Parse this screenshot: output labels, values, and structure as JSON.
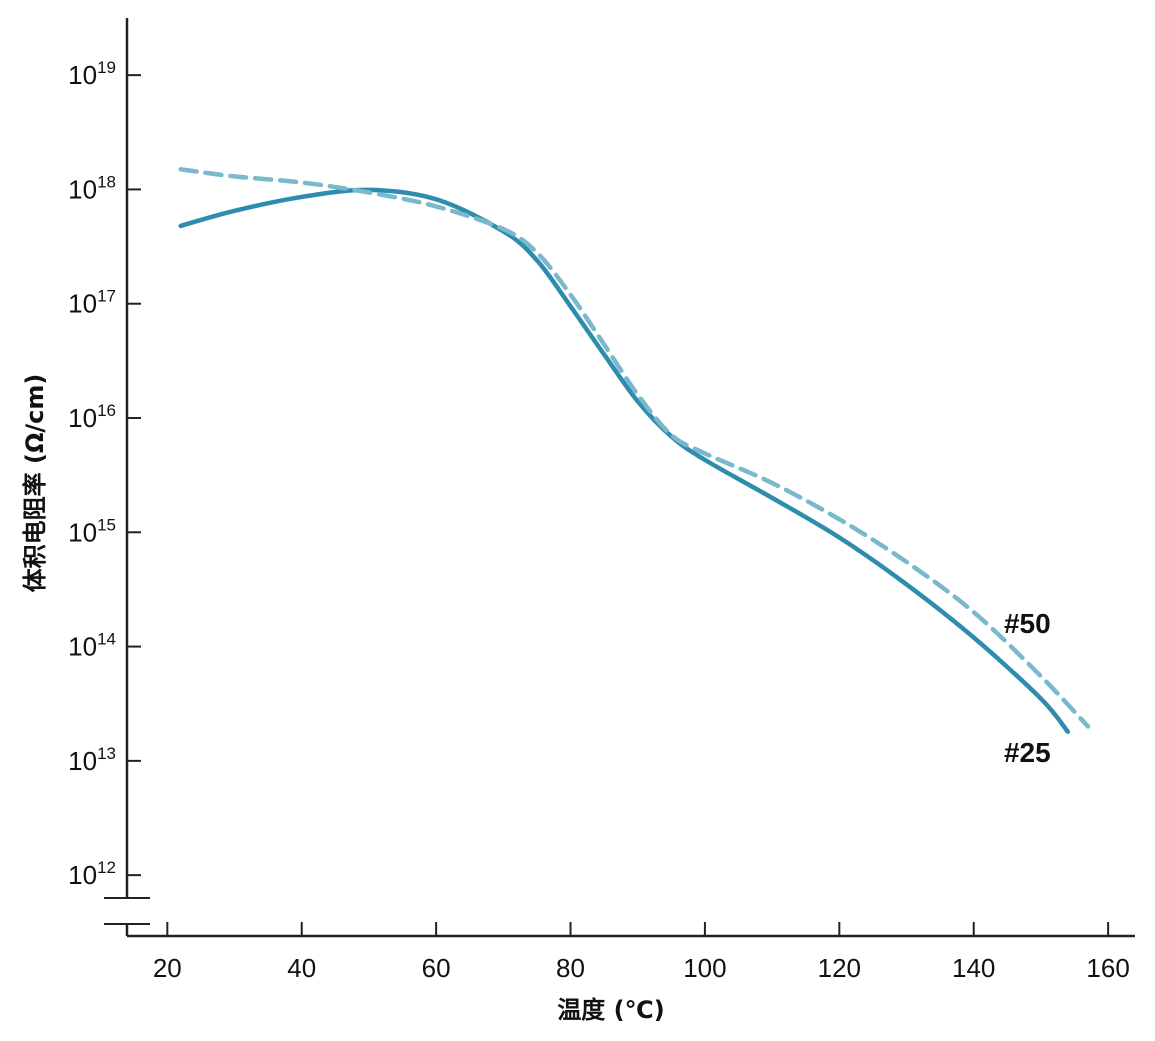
{
  "chart_data": {
    "type": "line",
    "xlabel": "温度 (℃)",
    "ylabel": "体积电阻率 (Ω/cm)",
    "x_ticks": [
      20,
      40,
      60,
      80,
      100,
      120,
      140,
      160
    ],
    "xlim": [
      14,
      164
    ],
    "y_scale": "log",
    "y_ticks": [
      {
        "base": "10",
        "exp": "12",
        "value": 1000000000000.0
      },
      {
        "base": "10",
        "exp": "13",
        "value": 10000000000000.0
      },
      {
        "base": "10",
        "exp": "14",
        "value": 100000000000000.0
      },
      {
        "base": "10",
        "exp": "15",
        "value": 1000000000000000.0
      },
      {
        "base": "10",
        "exp": "16",
        "value": 1e+16
      },
      {
        "base": "10",
        "exp": "17",
        "value": 1e+17
      },
      {
        "base": "10",
        "exp": "18",
        "value": 1e+18
      },
      {
        "base": "10",
        "exp": "19",
        "value": 1e+19
      }
    ],
    "ylim_exp": [
      11.8,
      19.5
    ],
    "axis_break": true,
    "series": [
      {
        "name": "#25",
        "style": "solid",
        "color": "#2e8dad",
        "x": [
          22,
          30,
          40,
          50,
          60,
          70,
          75,
          80,
          85,
          90,
          95,
          100,
          110,
          120,
          130,
          140,
          150,
          154
        ],
        "y": [
          4.8e+17,
          6.5e+17,
          8.6e+17,
          9.9e+17,
          8.2e+17,
          4.3e+17,
          2.4e+17,
          9.5e+16,
          3.6e+16,
          1.4e+16,
          6900000000000000.0,
          4300000000000000.0,
          2000000000000000.0,
          900000000000000.0,
          350000000000000.0,
          120000000000000.0,
          35000000000000.0,
          18000000000000.0
        ]
      },
      {
        "name": "#50",
        "style": "dashed",
        "color": "#7ab8ce",
        "x": [
          22,
          30,
          40,
          50,
          60,
          70,
          75,
          80,
          85,
          90,
          95,
          100,
          110,
          120,
          130,
          140,
          150,
          157
        ],
        "y": [
          1.5e+18,
          1.3e+18,
          1.15e+18,
          9.4e+17,
          7.1e+17,
          4.5e+17,
          2.8e+17,
          1.2e+17,
          4.4e+16,
          1.6e+16,
          7100000000000000.0,
          4900000000000000.0,
          2700000000000000.0,
          1300000000000000.0,
          550000000000000.0,
          200000000000000.0,
          55000000000000.0,
          20000000000000.0
        ]
      }
    ]
  }
}
